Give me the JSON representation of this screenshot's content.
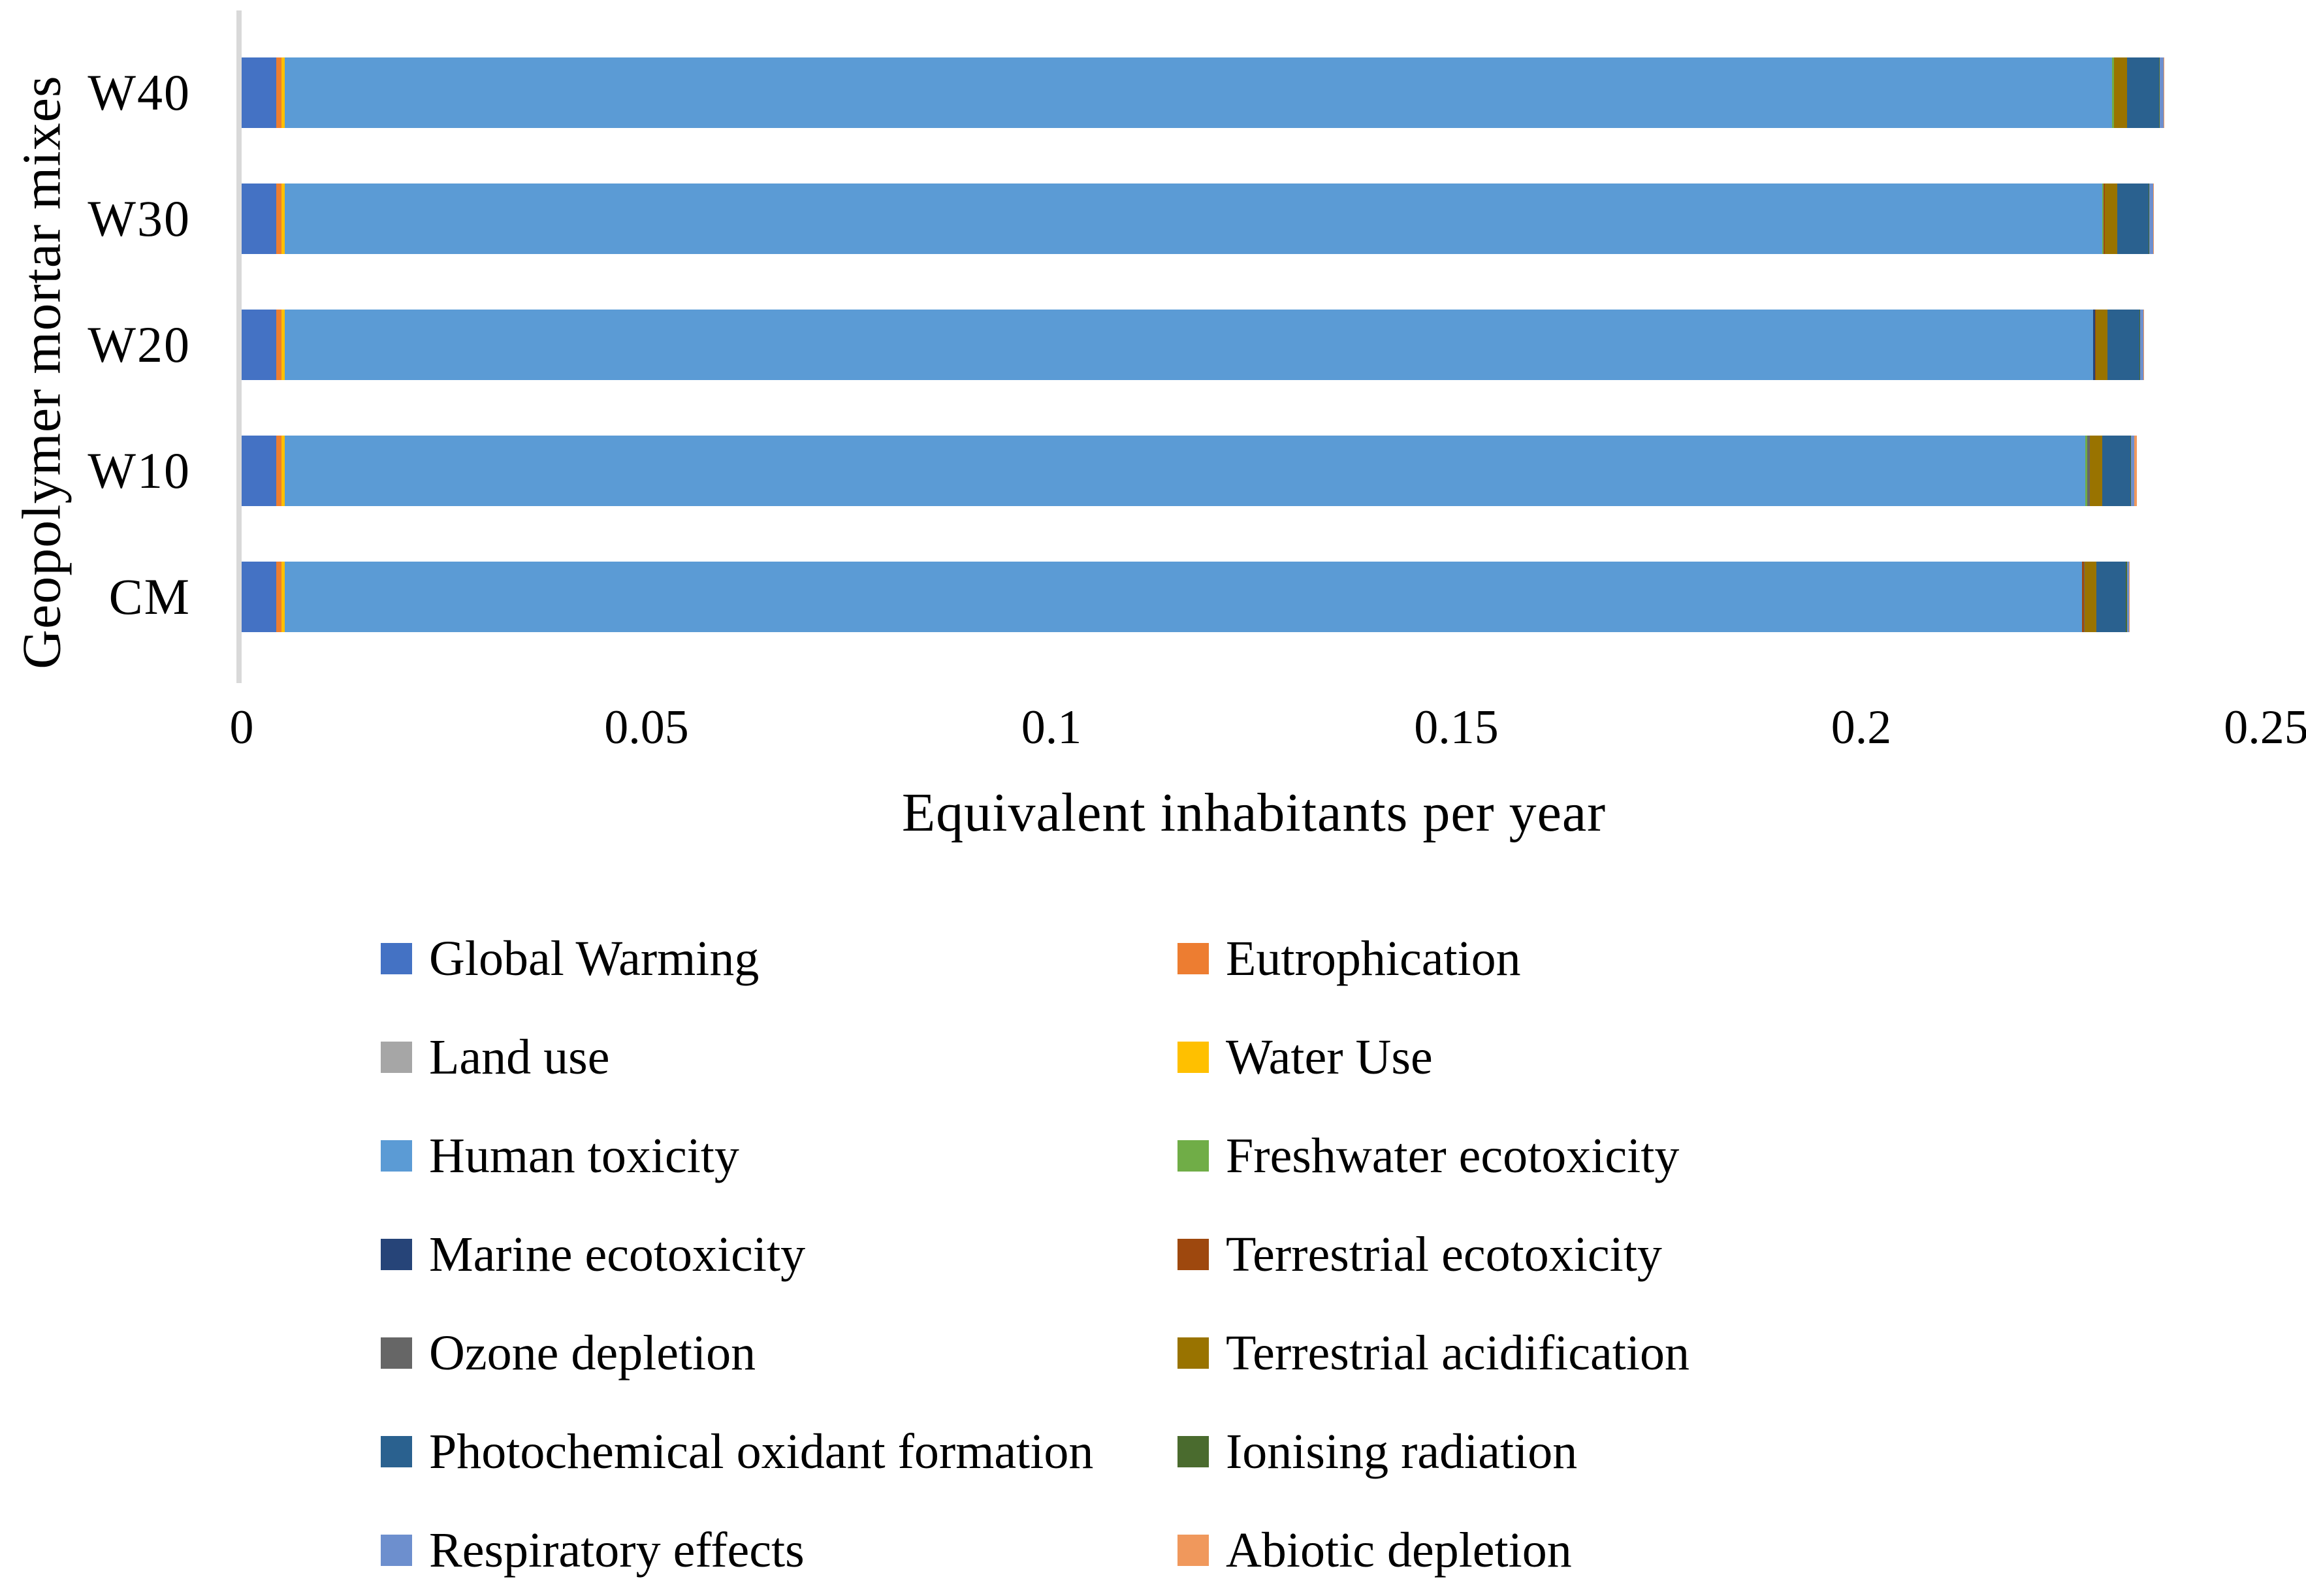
{
  "figure": {
    "x_tick_labels": [
      "0",
      "0.05",
      "0.1",
      "0.15",
      "0.2",
      "0.25"
    ]
  },
  "chart_data": {
    "type": "bar",
    "orientation": "horizontal",
    "stacked": true,
    "title": "",
    "xlabel": "Equivalent inhabitants per year",
    "ylabel": "Geopolymer mortar mixes",
    "xlim": [
      0,
      0.25
    ],
    "x_tick_step": 0.05,
    "grid": false,
    "legend_position": "bottom",
    "legend_columns": 2,
    "categories": [
      "W40",
      "W30",
      "W20",
      "W10",
      "CM"
    ],
    "series": [
      {
        "name": "Global Warming",
        "color": "#4472C4",
        "values": [
          0.0043,
          0.0043,
          0.0043,
          0.0043,
          0.0043
        ]
      },
      {
        "name": "Eutrophication",
        "color": "#ED7D31",
        "values": [
          0.0006,
          0.0006,
          0.0006,
          0.0006,
          0.0006
        ]
      },
      {
        "name": "Land use",
        "color": "#A6A6A6",
        "values": [
          5e-05,
          5e-05,
          5e-05,
          5e-05,
          5e-05
        ]
      },
      {
        "name": "Water Use",
        "color": "#FFC000",
        "values": [
          0.0004,
          0.0004,
          0.0004,
          0.0004,
          0.0004
        ]
      },
      {
        "name": "Human toxicity",
        "color": "#5B9BD5",
        "values": [
          0.2256,
          0.2244,
          0.2233,
          0.2223,
          0.2219
        ]
      },
      {
        "name": "Freshwater ecotoxicity",
        "color": "#70AD47",
        "values": [
          0.00024,
          0.00016,
          2e-05,
          0.00024,
          2e-05
        ]
      },
      {
        "name": "Marine ecotoxicity",
        "color": "#264478",
        "values": [
          2e-05,
          2e-05,
          0.00024,
          2e-05,
          2e-05
        ]
      },
      {
        "name": "Terrestrial ecotoxicity",
        "color": "#9E480E",
        "values": [
          2e-05,
          0.00016,
          2e-05,
          2e-05,
          0.00024
        ]
      },
      {
        "name": "Ozone depletion",
        "color": "#666666",
        "values": [
          2e-05,
          2e-05,
          2e-05,
          0.0003,
          2e-05
        ]
      },
      {
        "name": "Terrestrial acidification",
        "color": "#997300",
        "values": [
          0.0016,
          0.0015,
          0.0015,
          0.0015,
          0.0015
        ]
      },
      {
        "name": "Photochemical oxidant formation",
        "color": "#2A618F",
        "values": [
          0.0039,
          0.0039,
          0.0039,
          0.0035,
          0.0036
        ]
      },
      {
        "name": "Ionising radiation",
        "color": "#4A6B2E",
        "values": [
          0.00012,
          8e-05,
          8e-05,
          8e-05,
          0.00016
        ]
      },
      {
        "name": "Respiratory effects",
        "color": "#6D8FCE",
        "values": [
          0.0005,
          0.0005,
          0.0004,
          0.0004,
          0.00024
        ]
      },
      {
        "name": "Abiotic depletion",
        "color": "#F0985C",
        "values": [
          2e-05,
          2e-05,
          2e-05,
          0.0003,
          2e-05
        ]
      }
    ]
  }
}
